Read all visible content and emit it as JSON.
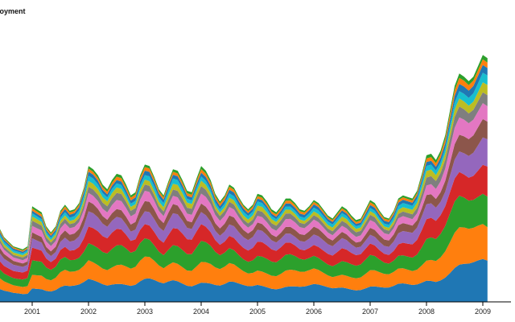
{
  "chart_data": {
    "type": "area",
    "stacked": true,
    "title": "Unemployment",
    "visible_title": "loyment",
    "xlabel": "",
    "ylabel": "",
    "x_ticks": [
      "2001",
      "2002",
      "2003",
      "2004",
      "2005",
      "2006",
      "2007",
      "2008",
      "2009"
    ],
    "x_start_year": 2000,
    "x_month_step": 1,
    "ylim": [
      0,
      18
    ],
    "grid": false,
    "legend": "none",
    "total": [
      4.9,
      4.8,
      4.6,
      4.5,
      4.7,
      4.8,
      4.2,
      3.9,
      3.6,
      3.5,
      3.4,
      3.6,
      6.2,
      6.0,
      5.8,
      4.9,
      4.5,
      4.9,
      5.9,
      6.3,
      5.9,
      6.0,
      6.4,
      7.4,
      8.8,
      8.6,
      8.2,
      7.6,
      7.3,
      7.9,
      8.3,
      8.2,
      7.6,
      6.9,
      7.1,
      8.2,
      8.9,
      8.8,
      8.1,
      7.3,
      6.9,
      7.8,
      8.6,
      8.5,
      7.9,
      7.2,
      7.1,
      8.0,
      8.8,
      8.5,
      7.9,
      7.0,
      6.5,
      6.9,
      7.6,
      7.4,
      6.8,
      6.3,
      6.0,
      6.3,
      7.0,
      6.9,
      6.5,
      6.0,
      5.8,
      6.2,
      6.7,
      6.7,
      6.4,
      6.0,
      5.9,
      6.2,
      6.6,
      6.4,
      6.0,
      5.6,
      5.4,
      5.8,
      6.2,
      6.0,
      5.6,
      5.3,
      5.4,
      6.0,
      6.6,
      6.4,
      5.9,
      5.5,
      5.4,
      5.9,
      6.7,
      6.9,
      6.8,
      6.7,
      7.2,
      8.3,
      9.5,
      9.6,
      9.2,
      9.8,
      10.8,
      12.4,
      14.0,
      14.8,
      14.6,
      14.3,
      14.6,
      15.3,
      16.0,
      15.8
    ]
  },
  "series_colors": [
    "#1f77b4",
    "#ff7f0e",
    "#2ca02c",
    "#d62728",
    "#9467bd",
    "#8c564b",
    "#e377c2",
    "#7f7f7f",
    "#bcbd22",
    "#17becf",
    "#1f77b4",
    "#ff7f0e",
    "#2ca02c"
  ]
}
